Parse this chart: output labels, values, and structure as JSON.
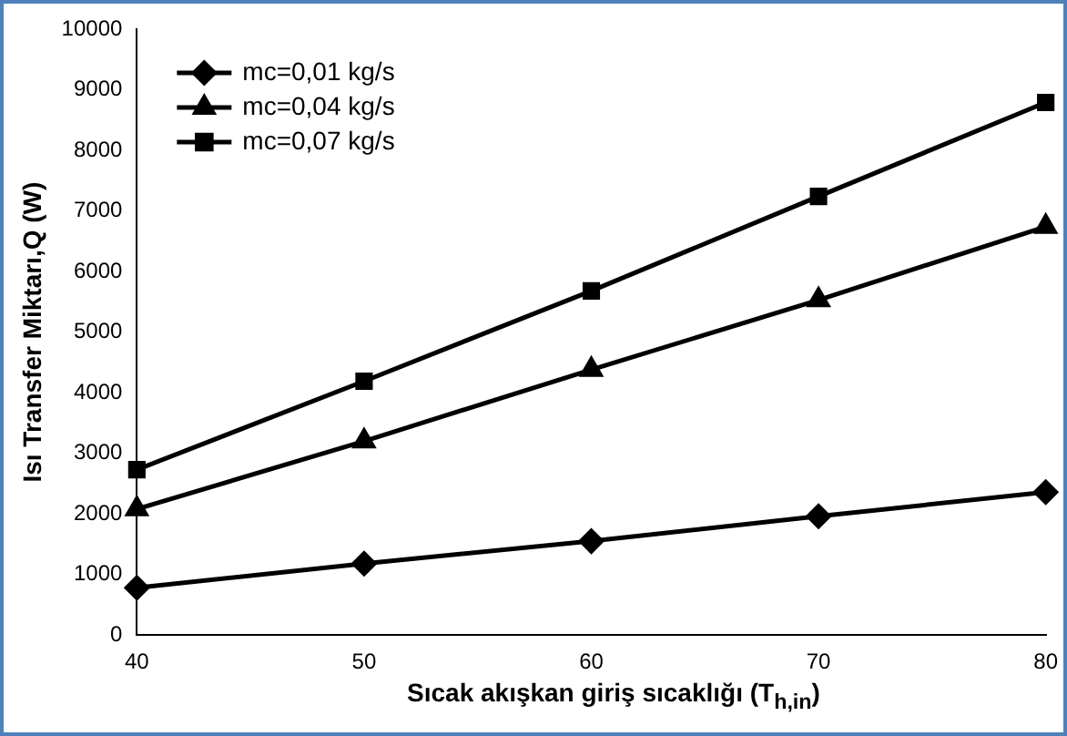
{
  "chart_data": {
    "type": "line",
    "xlabel": "Sıcak akışkan giriş sıcaklığı (T$_{h,in}$)",
    "ylabel": "Isı Transfer Miktarı,Q (W)",
    "x": [
      40,
      50,
      60,
      70,
      80
    ],
    "series": [
      {
        "name": "mc=0,01 kg/s",
        "color": "#000000",
        "marker": "diamond",
        "values": [
          780,
          1180,
          1550,
          1960,
          2360
        ]
      },
      {
        "name": "mc=0,04 kg/s",
        "color": "#000000",
        "marker": "triangle",
        "values": [
          2080,
          3200,
          4380,
          5530,
          6740
        ]
      },
      {
        "name": "mc=0,07 kg/s",
        "color": "#000000",
        "marker": "square",
        "values": [
          2730,
          4190,
          5680,
          7240,
          8790
        ]
      }
    ],
    "xlim": [
      40,
      80
    ],
    "xticks": [
      40,
      50,
      60,
      70,
      80
    ],
    "ylim": [
      0,
      10000
    ],
    "yticks": [
      0,
      1000,
      2000,
      3000,
      4000,
      5000,
      6000,
      7000,
      8000,
      9000,
      10000
    ],
    "grid": false,
    "legend": "top left",
    "line_style": "solid"
  }
}
